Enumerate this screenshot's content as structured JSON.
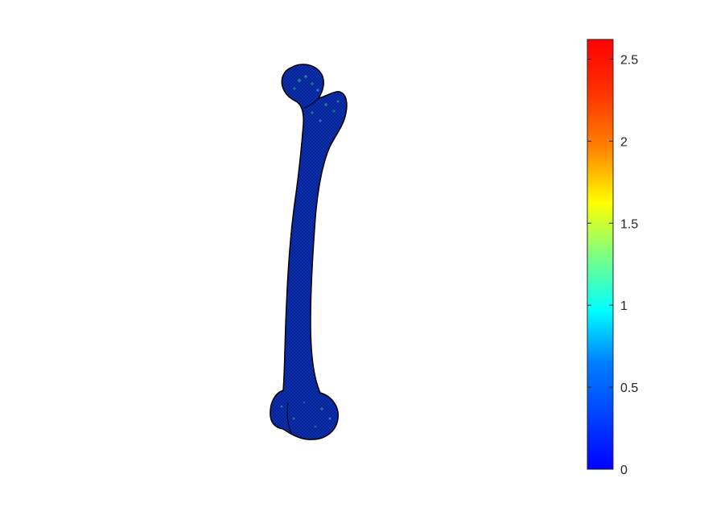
{
  "figure": {
    "background": "#ffffff"
  },
  "colorbar": {
    "colormap": "jet",
    "limits": [
      0,
      2.62
    ],
    "ticks": [
      {
        "value": 0,
        "label": "0"
      },
      {
        "value": 0.5,
        "label": "0.5"
      },
      {
        "value": 1,
        "label": "1"
      },
      {
        "value": 1.5,
        "label": "1.5"
      },
      {
        "value": 2,
        "label": "2"
      },
      {
        "value": 2.5,
        "label": "2.5"
      }
    ],
    "gradient_stops": [
      "#00008f",
      "#0000ff",
      "#00ffff",
      "#ffff00",
      "#ff0000",
      "#800000"
    ]
  },
  "model": {
    "subject": "femur-bone-mesh",
    "base_color": "#0a2fb0",
    "edge_color": "#000000",
    "highlight_colors": [
      "#1a8a8a",
      "#2e9e6e",
      "#3aa0c8"
    ]
  }
}
